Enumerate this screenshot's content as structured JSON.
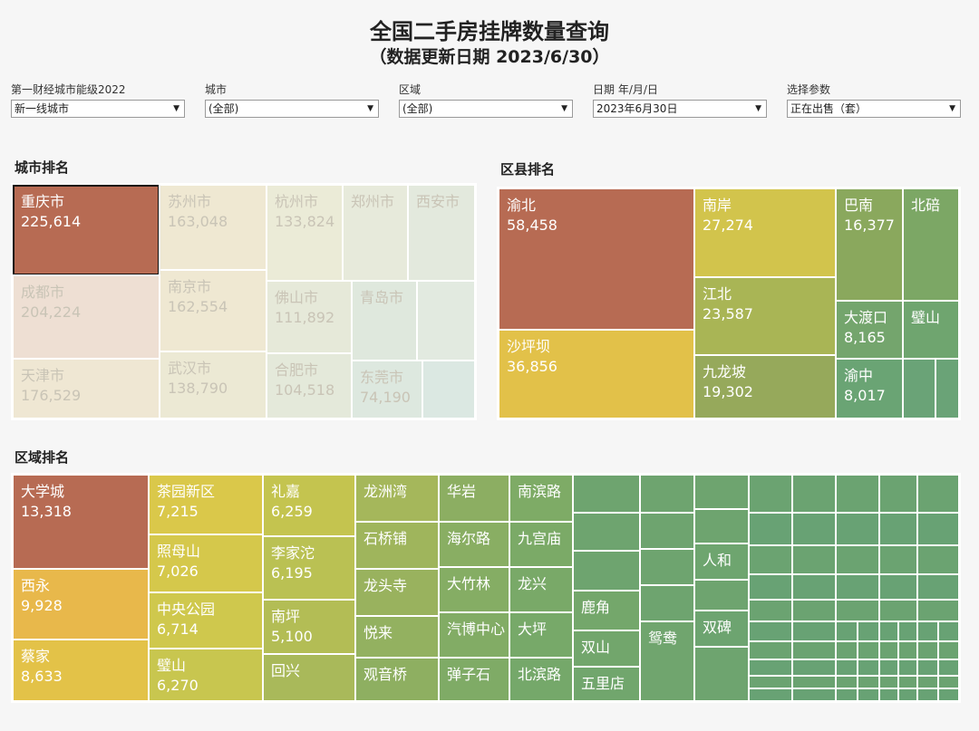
{
  "title": {
    "line1": "全国二手房挂牌数量查询",
    "line2": "（数据更新日期 2023/6/30）"
  },
  "filters": [
    {
      "label": "第一财经城市能级2022",
      "value": "新一线城市"
    },
    {
      "label": "城市",
      "value": "(全部)"
    },
    {
      "label": "区域",
      "value": "(全部)"
    },
    {
      "label": "日期 年/月/日",
      "value": "2023年6月30日"
    },
    {
      "label": "选择参数",
      "value": "正在出售（套）"
    }
  ],
  "sections": {
    "city": "城市排名",
    "district": "区县排名",
    "area": "区域排名"
  },
  "chart_data": [
    {
      "type": "treemap",
      "title": "城市排名",
      "selected": "重庆市",
      "items": [
        {
          "name": "重庆市",
          "value": 225614,
          "label": "225,614"
        },
        {
          "name": "成都市",
          "value": 204224,
          "label": "204,224"
        },
        {
          "name": "天津市",
          "value": 176529,
          "label": "176,529"
        },
        {
          "name": "苏州市",
          "value": 163048,
          "label": "163,048"
        },
        {
          "name": "南京市",
          "value": 162554,
          "label": "162,554"
        },
        {
          "name": "武汉市",
          "value": 138790,
          "label": "138,790"
        },
        {
          "name": "杭州市",
          "value": 133824,
          "label": "133,824"
        },
        {
          "name": "佛山市",
          "value": 111892,
          "label": "111,892"
        },
        {
          "name": "合肥市",
          "value": 104518,
          "label": "104,518"
        },
        {
          "name": "郑州市"
        },
        {
          "name": "西安市"
        },
        {
          "name": "青岛市"
        },
        {
          "name": "东莞市",
          "value": 74190,
          "label": "74,190"
        }
      ]
    },
    {
      "type": "treemap",
      "title": "区县排名",
      "items": [
        {
          "name": "渝北",
          "value": 58458,
          "label": "58,458"
        },
        {
          "name": "沙坪坝",
          "value": 36856,
          "label": "36,856"
        },
        {
          "name": "南岸",
          "value": 27274,
          "label": "27,274"
        },
        {
          "name": "江北",
          "value": 23587,
          "label": "23,587"
        },
        {
          "name": "九龙坡",
          "value": 19302,
          "label": "19,302"
        },
        {
          "name": "巴南",
          "value": 16377,
          "label": "16,377"
        },
        {
          "name": "北碚"
        },
        {
          "name": "大渡口",
          "value": 8165,
          "label": "8,165"
        },
        {
          "name": "璧山"
        },
        {
          "name": "渝中",
          "value": 8017,
          "label": "8,017"
        }
      ]
    },
    {
      "type": "treemap",
      "title": "区域排名",
      "items": [
        {
          "name": "大学城",
          "value": 13318,
          "label": "13,318"
        },
        {
          "name": "西永",
          "value": 9928,
          "label": "9,928"
        },
        {
          "name": "蔡家",
          "value": 8633,
          "label": "8,633"
        },
        {
          "name": "茶园新区",
          "value": 7215,
          "label": "7,215"
        },
        {
          "name": "照母山",
          "value": 7026,
          "label": "7,026"
        },
        {
          "name": "中央公园",
          "value": 6714,
          "label": "6,714"
        },
        {
          "name": "璧山",
          "value": 6270,
          "label": "6,270"
        },
        {
          "name": "礼嘉",
          "value": 6259,
          "label": "6,259"
        },
        {
          "name": "李家沱",
          "value": 6195,
          "label": "6,195"
        },
        {
          "name": "南坪",
          "value": 5100,
          "label": "5,100"
        },
        {
          "name": "回兴"
        },
        {
          "name": "龙洲湾"
        },
        {
          "name": "石桥铺"
        },
        {
          "name": "龙头寺"
        },
        {
          "name": "悦来"
        },
        {
          "name": "观音桥"
        },
        {
          "name": "华岩"
        },
        {
          "name": "海尔路"
        },
        {
          "name": "大竹林"
        },
        {
          "name": "汽博中心"
        },
        {
          "name": "弹子石"
        },
        {
          "name": "南滨路"
        },
        {
          "name": "九宫庙"
        },
        {
          "name": "龙兴"
        },
        {
          "name": "大坪"
        },
        {
          "name": "北滨路"
        },
        {
          "name": "鹿角"
        },
        {
          "name": "双山"
        },
        {
          "name": "五里店"
        },
        {
          "name": "鸳鸯"
        },
        {
          "name": "人和"
        },
        {
          "name": "双碑"
        }
      ]
    }
  ]
}
